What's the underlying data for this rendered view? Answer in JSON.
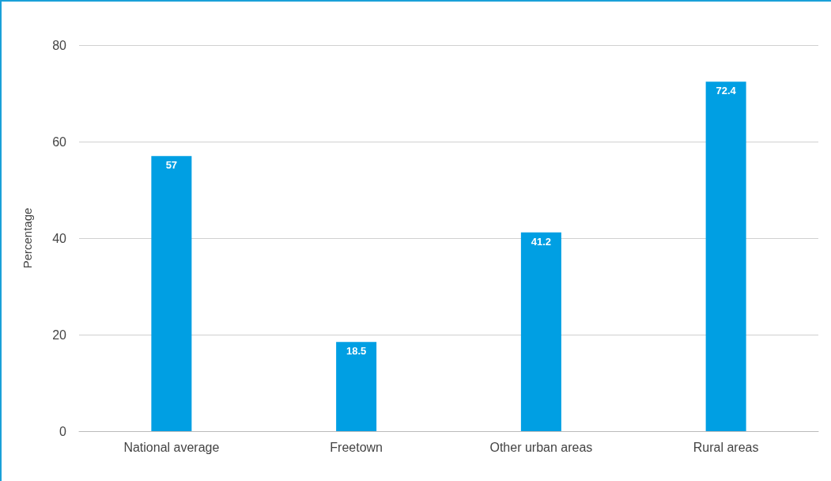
{
  "chart_data": {
    "type": "bar",
    "ylabel": "Percentage",
    "categories": [
      "National average",
      "Freetown",
      "Other urban areas",
      "Rural areas"
    ],
    "values": [
      57,
      18.5,
      41.2,
      72.4
    ],
    "color": "#009fe3",
    "ylim": [
      0,
      80
    ],
    "yticks": [
      0,
      20,
      40,
      60,
      80
    ],
    "grid": "y",
    "data_labels": true
  }
}
